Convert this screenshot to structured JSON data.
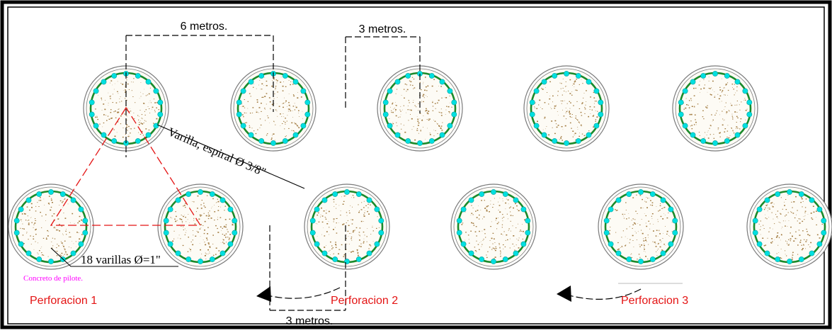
{
  "dimensions": {
    "top_left": "6 metros.",
    "top_right": "3 metros.",
    "bottom": "3 metros."
  },
  "labels": {
    "spiral_bar": "Varilla, espiral Ø 3/8\"",
    "long_bars": "18 varillas Ø=1\"",
    "concrete": "Concreto de pilote."
  },
  "perforations": [
    "Perforacion 1",
    "Perforacion 2",
    "Perforacion 3"
  ],
  "piles": {
    "top_row_count": 5,
    "bottom_row_count": 6,
    "bars_per_pile": 18
  },
  "colors": {
    "frame": "#000000",
    "pile_outline": "#7a7a7a",
    "spiral": "#1a8a2a",
    "rebar": "#00e0e0",
    "concrete_speck": "#a0783c",
    "perforation_text": "#e41414",
    "concrete_label": "#ff00ff",
    "triangle": "#e41414"
  }
}
